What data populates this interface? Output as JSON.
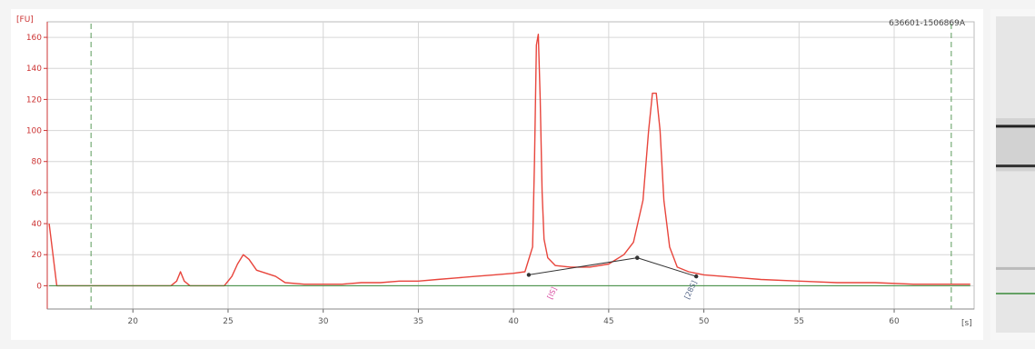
{
  "header": {
    "sample_id": "636601-1506869A"
  },
  "chart_data": {
    "type": "line",
    "ylabel": "[FU]",
    "xlabel": "[s]",
    "xlim": [
      15.5,
      64.2
    ],
    "ylim": [
      -15,
      170
    ],
    "x_ticks": [
      20,
      25,
      30,
      35,
      40,
      45,
      50,
      55,
      60
    ],
    "x_tick_labels": [
      "20",
      "25",
      "30",
      "35",
      "40",
      "45",
      "50",
      "55",
      "60"
    ],
    "y_ticks": [
      0,
      20,
      40,
      60,
      80,
      100,
      120,
      140,
      160
    ],
    "grid": true,
    "markers": [
      {
        "name": "lower-marker-line",
        "x": 17.8
      },
      {
        "name": "upper-marker-line",
        "x": 63.0
      }
    ],
    "series": [
      {
        "color": "#e8453c",
        "x": [
          15.6,
          16.0,
          17.0,
          18.0,
          19.0,
          20.0,
          21.0,
          22.0,
          22.3,
          22.5,
          22.7,
          23.0,
          24.0,
          24.8,
          25.2,
          25.5,
          25.8,
          26.1,
          26.5,
          27.0,
          27.5,
          28.0,
          29.0,
          30.0,
          31.0,
          32.0,
          33.0,
          34.0,
          35.0,
          36.0,
          37.0,
          38.0,
          39.0,
          40.0,
          40.6,
          41.0,
          41.1,
          41.2,
          41.3,
          41.4,
          41.5,
          41.6,
          41.8,
          42.2,
          43.0,
          44.0,
          45.0,
          45.8,
          46.3,
          46.8,
          47.1,
          47.3,
          47.5,
          47.7,
          47.9,
          48.2,
          48.6,
          49.2,
          50.0,
          51.0,
          52.0,
          53.0,
          55.0,
          57.0,
          59.0,
          61.0,
          63.0,
          64.0
        ],
        "y": [
          40,
          0,
          0,
          0,
          0,
          0,
          0,
          0,
          3,
          9,
          3,
          0,
          0,
          0,
          6,
          14,
          20,
          17,
          10,
          8,
          6,
          2,
          1,
          1,
          1,
          2,
          2,
          3,
          3,
          4,
          5,
          6,
          7,
          8,
          9,
          25,
          80,
          155,
          162,
          120,
          60,
          30,
          18,
          13,
          12,
          12,
          14,
          20,
          28,
          55,
          100,
          124,
          124,
          100,
          55,
          25,
          12,
          9,
          7,
          6,
          5,
          4,
          3,
          2,
          2,
          1,
          1,
          1
        ]
      },
      {
        "color": "#3a8a3a",
        "x": [
          15.6,
          64.0
        ],
        "y": [
          0,
          0
        ]
      }
    ],
    "baseline_segments": [
      {
        "x": [
          40.8,
          46.5
        ],
        "y": [
          7,
          18
        ]
      },
      {
        "x": [
          46.5,
          49.6
        ],
        "y": [
          18,
          6
        ]
      }
    ],
    "peak_labels": [
      {
        "text": "[IS]",
        "x": 42.0,
        "y": -9,
        "color": "#d84aa0"
      },
      {
        "text": "[28S]",
        "x": 49.2,
        "y": -9,
        "color": "#556688"
      }
    ]
  },
  "gel": {
    "bands": [
      {
        "name": "upper-band",
        "y": 0.35,
        "color": "#222222"
      },
      {
        "name": "lower-band",
        "y": 0.47,
        "color": "#333333"
      },
      {
        "name": "faint-band",
        "y": 0.78,
        "color": "#bbbbbb"
      }
    ],
    "green_line": 0.86
  }
}
